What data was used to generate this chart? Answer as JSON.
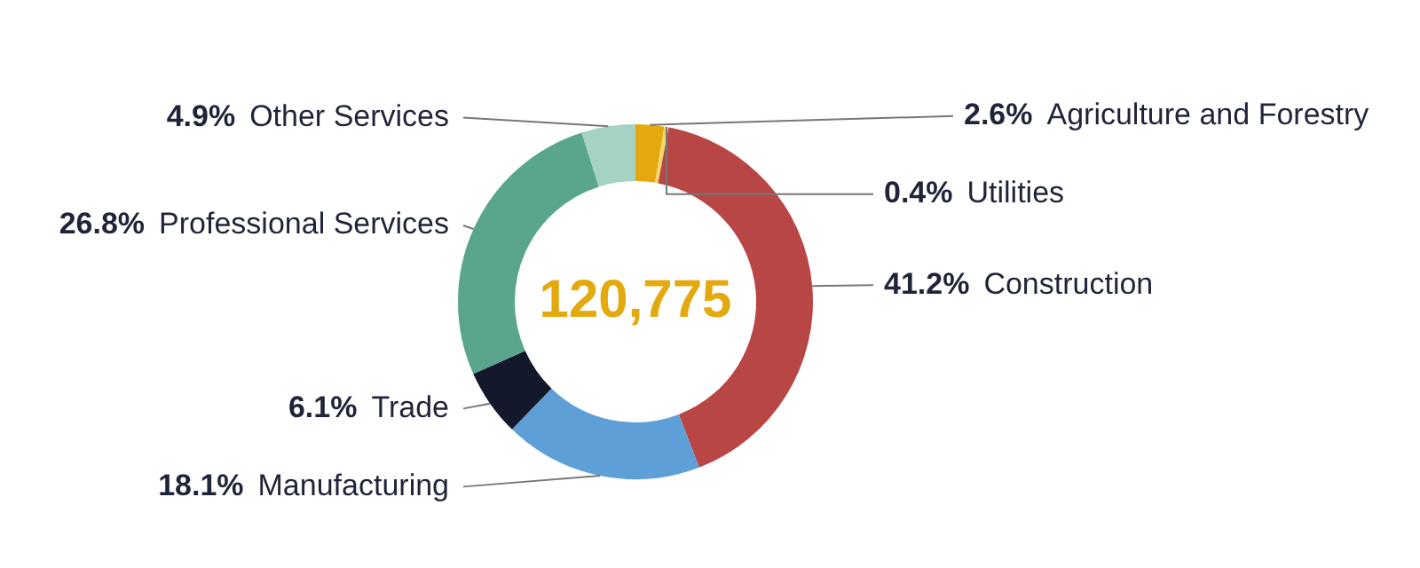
{
  "chart_data": {
    "type": "donut",
    "categories": [
      "Agriculture and Forestry",
      "Utilities",
      "Construction",
      "Manufacturing",
      "Trade",
      "Professional Services",
      "Other Services"
    ],
    "values": [
      2.6,
      0.4,
      41.2,
      18.1,
      6.1,
      26.8,
      4.9
    ],
    "value_labels": [
      "2.6%",
      "0.4%",
      "41.2%",
      "18.1%",
      "6.1%",
      "26.8%",
      "4.9%"
    ],
    "colors": [
      "#e3a90f",
      "#f3d76a",
      "#b84644",
      "#5e9fd8",
      "#13192b",
      "#5aa68d",
      "#a5d2c2"
    ],
    "annotations": [
      "120,775"
    ],
    "legend": false
  }
}
